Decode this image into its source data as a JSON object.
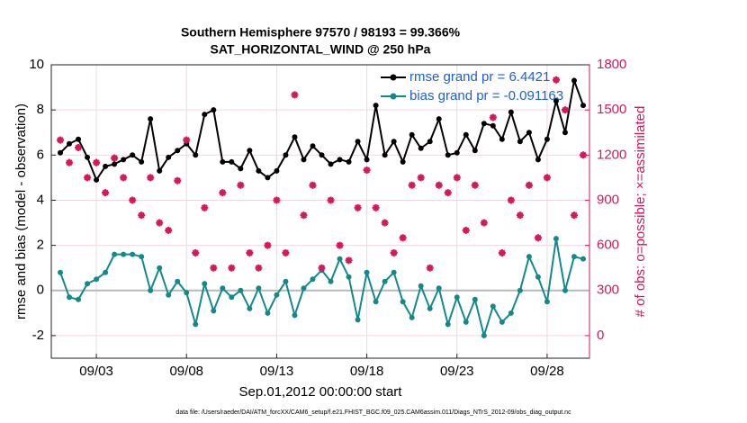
{
  "chart_data": {
    "type": "line",
    "title": "Southern Hemisphere 97570 / 98193 = 99.366%",
    "subtitle": "SAT_HORIZONTAL_WIND @ 250 hPa",
    "x_label": "Sep.01,2012 00:00:00 start",
    "y_label": "rmse and bias (model - observation)",
    "y2_label": "# of obs: o=possible; ×=assimilated",
    "footnote": "data file: /Users/raeder/DAI/ATM_forcXX/CAM6_setup/f.e21.FHIST_BGC.f09_025.CAM6assim.011/Diags_NTrS_2012-09/obs_diag_output.nc",
    "x": [
      0,
      0.5,
      1,
      1.5,
      2,
      2.5,
      3,
      3.5,
      4,
      4.5,
      5,
      5.5,
      6,
      6.5,
      7,
      7.5,
      8,
      8.5,
      9,
      9.5,
      10,
      10.5,
      11,
      11.5,
      12,
      12.5,
      13,
      13.5,
      14,
      14.5,
      15,
      15.5,
      16,
      16.5,
      17,
      17.5,
      18,
      18.5,
      19,
      19.5,
      20,
      20.5,
      21,
      21.5,
      22,
      22.5,
      23,
      23.5,
      24,
      24.5,
      25,
      25.5,
      26,
      26.5,
      27,
      27.5,
      28,
      28.5,
      29
    ],
    "xlim": [
      -0.5,
      29.35
    ],
    "xticks": [
      {
        "value": 2,
        "label": "09/03"
      },
      {
        "value": 7,
        "label": "09/08"
      },
      {
        "value": 12,
        "label": "09/13"
      },
      {
        "value": 17,
        "label": "09/18"
      },
      {
        "value": 22,
        "label": "09/23"
      },
      {
        "value": 27,
        "label": "09/28"
      }
    ],
    "ylim": [
      -3,
      10
    ],
    "yticks": [
      -2,
      0,
      2,
      4,
      6,
      8,
      10
    ],
    "y2lim": [
      -150,
      1800
    ],
    "y2ticks": [
      0,
      300,
      600,
      900,
      1200,
      1500,
      1800
    ],
    "grid": true,
    "legend": "upper right",
    "series": [
      {
        "name": "rmse grand pr = 6.4421",
        "color": "#000000",
        "values": [
          6.1,
          6.5,
          6.7,
          5.9,
          4.9,
          5.5,
          5.6,
          5.8,
          6.0,
          5.7,
          7.6,
          5.3,
          5.9,
          6.2,
          6.5,
          6.0,
          7.8,
          8.0,
          5.7,
          5.7,
          5.4,
          6.2,
          5.3,
          5.0,
          5.3,
          6.0,
          6.8,
          5.8,
          6.4,
          6.0,
          5.6,
          5.8,
          5.7,
          6.6,
          5.8,
          8.2,
          6.0,
          6.6,
          5.7,
          6.9,
          6.3,
          6.6,
          7.6,
          6.0,
          6.1,
          6.9,
          6.2,
          7.4,
          7.3,
          6.7,
          7.9,
          6.6,
          7.0,
          5.8,
          6.7,
          8.4,
          7.0,
          9.3,
          8.2
        ]
      },
      {
        "name": "bias grand pr = -0.091163",
        "color": "#138a8a",
        "values": [
          0.8,
          -0.3,
          -0.4,
          0.3,
          0.5,
          0.8,
          1.6,
          1.6,
          1.6,
          1.5,
          0.0,
          1.0,
          -0.2,
          0.4,
          -0.1,
          -1.5,
          0.3,
          -0.9,
          0.1,
          -0.3,
          0.0,
          -0.8,
          0.1,
          -1.0,
          -0.2,
          0.4,
          -1.1,
          0.1,
          0.5,
          0.9,
          0.4,
          1.4,
          0.6,
          -1.3,
          0.8,
          -0.5,
          0.4,
          0.8,
          -0.5,
          -1.2,
          0.2,
          -0.8,
          0.1,
          -1.5,
          -0.3,
          -1.4,
          -0.4,
          -2.0,
          -0.7,
          -1.4,
          -1.0,
          0.0,
          1.5,
          0.6,
          -0.5,
          2.3,
          0.0,
          1.5,
          1.4
        ]
      },
      {
        "color": "#d6175c",
        "axis": "y2",
        "values": [
          1300,
          1150,
          1250,
          1050,
          1150,
          950,
          1180,
          1050,
          900,
          800,
          1050,
          750,
          700,
          1030,
          1300,
          550,
          850,
          450,
          950,
          450,
          1000,
          550,
          450,
          600,
          900,
          550,
          1600,
          800,
          1000,
          450,
          900,
          600,
          500,
          850,
          1100,
          850,
          750,
          550,
          650,
          1000,
          1050,
          450,
          1000,
          950,
          1050,
          700,
          1000,
          750,
          1450,
          550,
          900,
          800,
          1000,
          650,
          1050,
          1700,
          1500,
          800,
          1200
        ]
      }
    ]
  }
}
